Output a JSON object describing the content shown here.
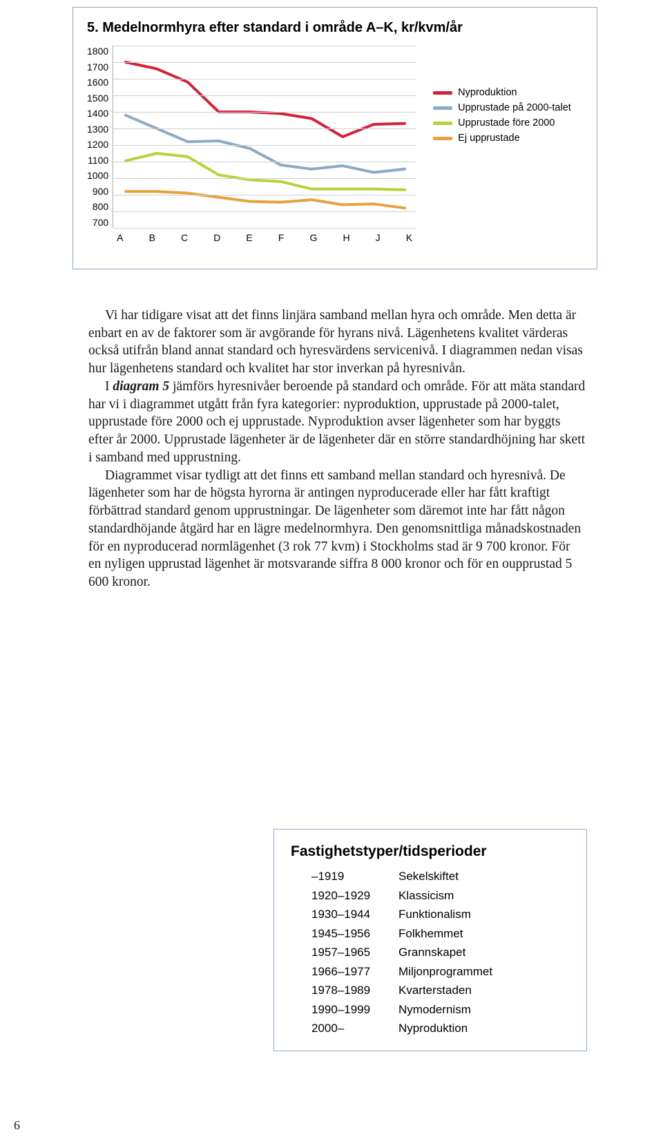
{
  "chart": {
    "title": "5. Medelnormhyra efter standard i område A–K, kr/kvm/år",
    "type": "line",
    "categories": [
      "A",
      "B",
      "C",
      "D",
      "E",
      "F",
      "G",
      "H",
      "J",
      "K"
    ],
    "y_ticks": [
      1800,
      1700,
      1600,
      1500,
      1400,
      1300,
      1200,
      1100,
      1000,
      900,
      800,
      700
    ],
    "ylim": [
      700,
      1800
    ],
    "series": [
      {
        "name": "Nyproduktion",
        "color": "#d3223a",
        "values": [
          1700,
          1660,
          1580,
          1400,
          1400,
          1390,
          1360,
          1250,
          1325,
          1330
        ]
      },
      {
        "name": "Upprustade på 2000-talet",
        "color": "#8da9c4",
        "values": [
          1380,
          1300,
          1220,
          1225,
          1180,
          1080,
          1055,
          1075,
          1035,
          1055
        ]
      },
      {
        "name": "Upprustade före 2000",
        "color": "#bfcf3a",
        "values": [
          1105,
          1150,
          1130,
          1020,
          990,
          980,
          935,
          935,
          935,
          930
        ]
      },
      {
        "name": "Ej upprustade",
        "color": "#e8a23a",
        "values": [
          920,
          920,
          910,
          885,
          860,
          855,
          870,
          840,
          845,
          820
        ]
      }
    ],
    "line_width": 4,
    "grid_color": "#cfcfcf",
    "background_color": "#ffffff",
    "tick_fontsize": 14,
    "title_fontsize": 20,
    "legend_fontsize": 14.5
  },
  "paragraphs": {
    "p1": "Vi har tidigare visat att det finns linjära samband mellan hyra och område. Men detta är enbart en av de faktorer som är avgörande för hyrans nivå. Lägenhetens kvalitet värderas också utifrån bland annat standard och hyres­värdens servicenivå. I diagrammen nedan visas hur lägenhetens standard och kvalitet har stor inverkan på hyresnivån.",
    "p2a": "I ",
    "p2em": "diagram 5",
    "p2b": " jämförs hyresnivåer beroende på standard och område. För att mäta standard har vi i diagrammet utgått från fyra kategorier: nyproduktion, upprustade på 2000-talet, upprustade före 2000 och ej upprustade. Nypro­duktion avser lägenheter som har byggts efter år 2000. Upprustade lägen­heter är de lägenheter där en större standardhöjning har skett i samband med upprustning.",
    "p3": "Diagrammet visar tydligt att det finns ett samband mellan standard och hyresnivå. De lägenheter som har de högsta hyrorna är antingen nyprodu­cerade eller har fått kraftigt förbättrad standard genom upprustningar. De lägenheter som däremot inte har fått någon standardhöjande åtgärd har en lägre medelnormhyra. Den genomsnittliga månadskostnaden för en nypro­ducerad normlägenhet (3 rok 77 kvm) i Stockholms stad är 9 700 kronor. För en nyligen upprustad lägenhet är motsvarande siffra 8 000 kronor och för en oupprustad 5 600 kronor."
  },
  "table": {
    "title": "Fastighetstyper/tidsperioder",
    "rows": [
      {
        "years": "–1919",
        "label": "Sekelskiftet"
      },
      {
        "years": "1920–1929",
        "label": "Klassicism"
      },
      {
        "years": "1930–1944",
        "label": "Funktionalism"
      },
      {
        "years": "1945–1956",
        "label": "Folkhemmet"
      },
      {
        "years": "1957–1965",
        "label": "Grannskapet"
      },
      {
        "years": "1966–1977",
        "label": "Miljonprogrammet"
      },
      {
        "years": "1978–1989",
        "label": "Kvarterstaden"
      },
      {
        "years": "1990–1999",
        "label": "Nymodernism"
      },
      {
        "years": "2000–",
        "label": "Nyproduktion"
      }
    ]
  },
  "page_number": "6"
}
